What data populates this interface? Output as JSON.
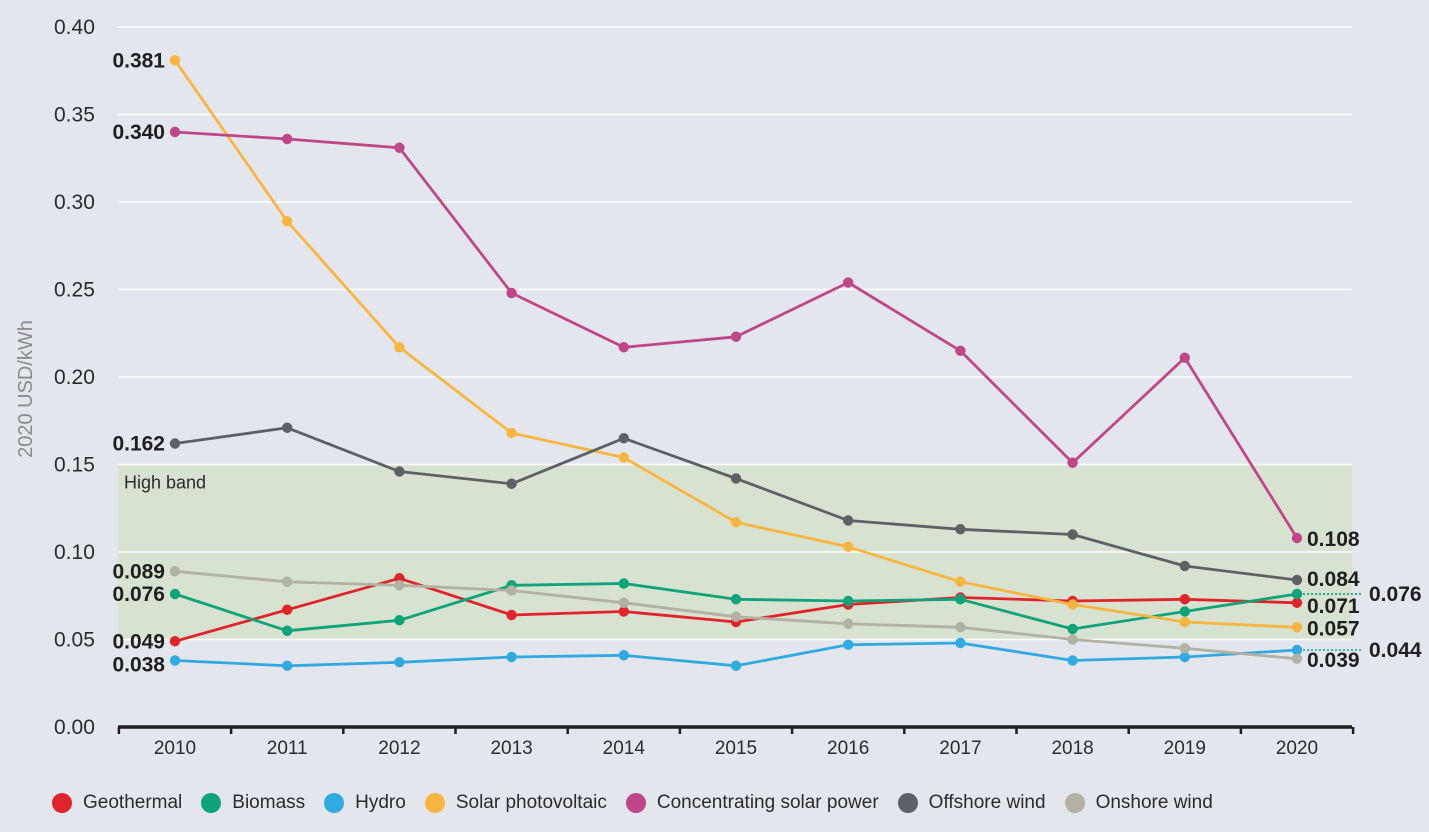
{
  "chart_data": {
    "type": "line",
    "title": "",
    "xlabel": "",
    "ylabel": "2020 USD/kWh",
    "ylim": [
      0,
      0.4
    ],
    "y_ticks": [
      "0.00",
      "0.05",
      "0.10",
      "0.15",
      "0.20",
      "0.25",
      "0.30",
      "0.35",
      "0.40"
    ],
    "categories": [
      "2010",
      "2011",
      "2012",
      "2013",
      "2014",
      "2015",
      "2016",
      "2017",
      "2018",
      "2019",
      "2020"
    ],
    "band": {
      "label": "High band",
      "from": 0.05,
      "to": 0.15
    },
    "series": [
      {
        "name": "Geothermal",
        "color": "#e0242b",
        "values": [
          0.049,
          0.067,
          0.085,
          0.064,
          0.066,
          0.06,
          0.07,
          0.074,
          0.072,
          0.073,
          0.071
        ]
      },
      {
        "name": "Biomass",
        "color": "#0fa37a",
        "values": [
          0.076,
          0.055,
          0.061,
          0.081,
          0.082,
          0.073,
          0.072,
          0.073,
          0.056,
          0.066,
          0.076
        ]
      },
      {
        "name": "Hydro",
        "color": "#31a9e1",
        "values": [
          0.038,
          0.035,
          0.037,
          0.04,
          0.041,
          0.035,
          0.047,
          0.048,
          0.038,
          0.04,
          0.044
        ]
      },
      {
        "name": "Solar photovoltaic",
        "color": "#f8b540",
        "values": [
          0.381,
          0.289,
          0.217,
          0.168,
          0.154,
          0.117,
          0.103,
          0.083,
          0.07,
          0.06,
          0.057
        ]
      },
      {
        "name": "Concentrating solar power",
        "color": "#c0468a",
        "values": [
          0.34,
          0.336,
          0.331,
          0.248,
          0.217,
          0.223,
          0.254,
          0.215,
          0.151,
          0.211,
          0.108
        ]
      },
      {
        "name": "Offshore wind",
        "color": "#5c6166",
        "values": [
          0.162,
          0.171,
          0.146,
          0.139,
          0.165,
          0.142,
          0.118,
          0.113,
          0.11,
          0.092,
          0.084
        ]
      },
      {
        "name": "Onshore wind",
        "color": "#b3b0a4",
        "values": [
          0.089,
          0.083,
          0.081,
          0.078,
          0.071,
          0.063,
          0.059,
          0.057,
          0.05,
          0.045,
          0.039
        ]
      }
    ],
    "start_labels": [
      {
        "series": "Solar photovoltaic",
        "text": "0.381"
      },
      {
        "series": "Concentrating solar power",
        "text": "0.340"
      },
      {
        "series": "Offshore wind",
        "text": "0.162"
      },
      {
        "series": "Onshore wind",
        "text": "0.089"
      },
      {
        "series": "Biomass",
        "text": "0.076"
      },
      {
        "series": "Geothermal",
        "text": "0.049"
      },
      {
        "series": "Hydro",
        "text": "0.038"
      }
    ],
    "end_labels": [
      {
        "series": "Concentrating solar power",
        "text": "0.108"
      },
      {
        "series": "Offshore wind",
        "text": "0.084"
      },
      {
        "series": "Biomass",
        "text": "0.076"
      },
      {
        "series": "Geothermal",
        "text": "0.071"
      },
      {
        "series": "Solar photovoltaic",
        "text": "0.057"
      },
      {
        "series": "Hydro",
        "text": "0.044"
      },
      {
        "series": "Onshore wind",
        "text": "0.039"
      }
    ],
    "legend_position": "bottom"
  }
}
